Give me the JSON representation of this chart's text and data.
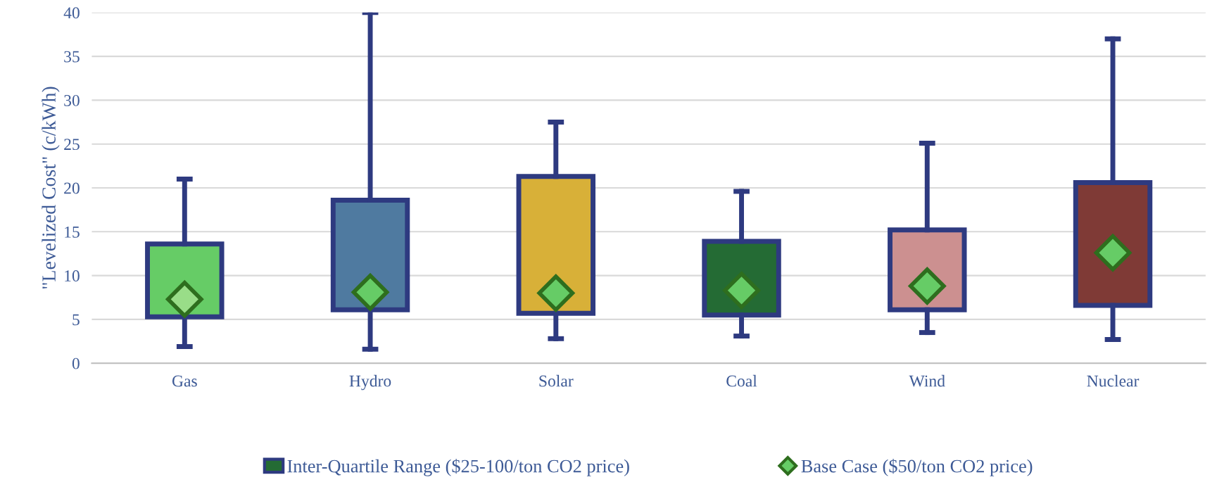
{
  "chart_data": {
    "type": "box",
    "ylabel": "\"Levelized Cost\" (c/kWh)",
    "categories": [
      "Gas",
      "Hydro",
      "Solar",
      "Coal",
      "Wind",
      "Nuclear"
    ],
    "ylim": [
      0,
      40
    ],
    "yticks": [
      0,
      5,
      10,
      15,
      20,
      25,
      30,
      35,
      40
    ],
    "grid": "y",
    "legend": "bottom",
    "series": [
      {
        "name": "Inter-Quartile Range ($25-100/ton CO2 price)",
        "color": "#2e3a80",
        "colors": [
          "#66cc66",
          "#4f7aa0",
          "#d8b038",
          "#246b34",
          "#cc9090",
          "#7f3a36"
        ],
        "boxes": [
          {
            "low": 1.9,
            "q1": 5.3,
            "median": null,
            "q3": 13.6,
            "high": 21.0
          },
          {
            "low": 1.6,
            "q1": 6.1,
            "median": null,
            "q3": 18.6,
            "high": 40.0
          },
          {
            "low": 2.8,
            "q1": 5.7,
            "median": null,
            "q3": 21.3,
            "high": 27.5
          },
          {
            "low": 3.1,
            "q1": 5.5,
            "median": null,
            "q3": 13.9,
            "high": 19.6
          },
          {
            "low": 3.5,
            "q1": 6.1,
            "median": null,
            "q3": 15.2,
            "high": 25.1
          },
          {
            "low": 2.7,
            "q1": 6.6,
            "median": null,
            "q3": 20.6,
            "high": 37.0
          }
        ]
      },
      {
        "name": "Base Case ($50/ton CO2 price)",
        "type": "scatter",
        "marker": "diamond",
        "color": "#66cc66",
        "colors": [
          "#99dd88",
          "#66cc66",
          "#66cc66",
          "#66cc66",
          "#66cc66",
          "#66cc66"
        ],
        "x": [
          "Gas",
          "Hydro",
          "Solar",
          "Coal",
          "Wind",
          "Nuclear"
        ],
        "values": [
          7.3,
          8.1,
          8.0,
          8.3,
          8.8,
          12.6
        ]
      }
    ]
  }
}
